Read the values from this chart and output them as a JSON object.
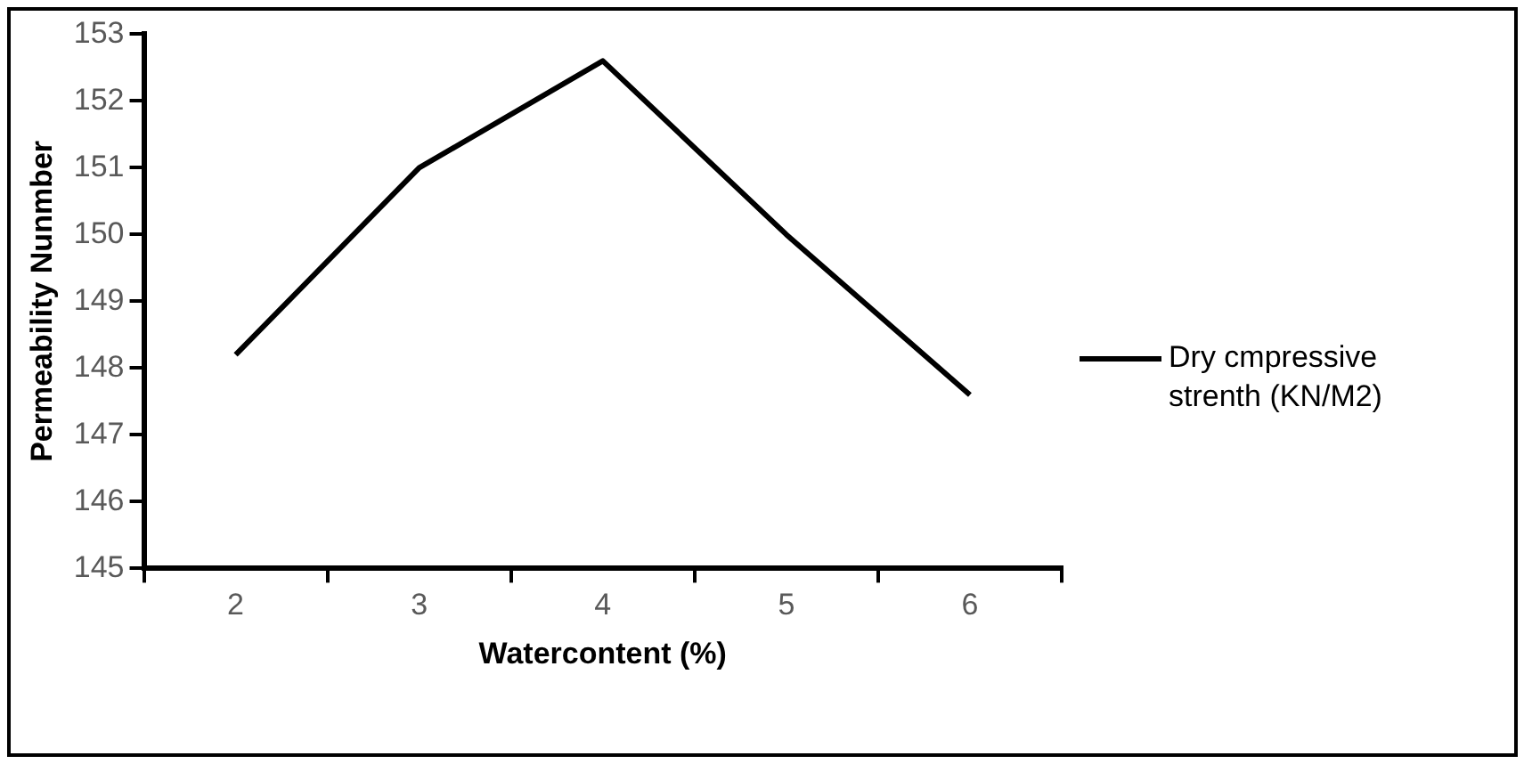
{
  "chart_data": {
    "type": "line",
    "xlabel": "Watercontent (%)",
    "ylabel": "Permeability Nunmber",
    "categories": [
      "2",
      "3",
      "4",
      "5",
      "6"
    ],
    "series": [
      {
        "name": "Dry cmpressive strenth (KN/M2)",
        "color": "#000000",
        "values": [
          148.2,
          151.0,
          152.6,
          150.0,
          147.6
        ]
      }
    ],
    "ylim": [
      145,
      153
    ],
    "yticks": [
      145,
      146,
      147,
      148,
      149,
      150,
      151,
      152,
      153
    ],
    "grid": false,
    "legend": "right",
    "marker": "none",
    "line_style": "solid"
  }
}
